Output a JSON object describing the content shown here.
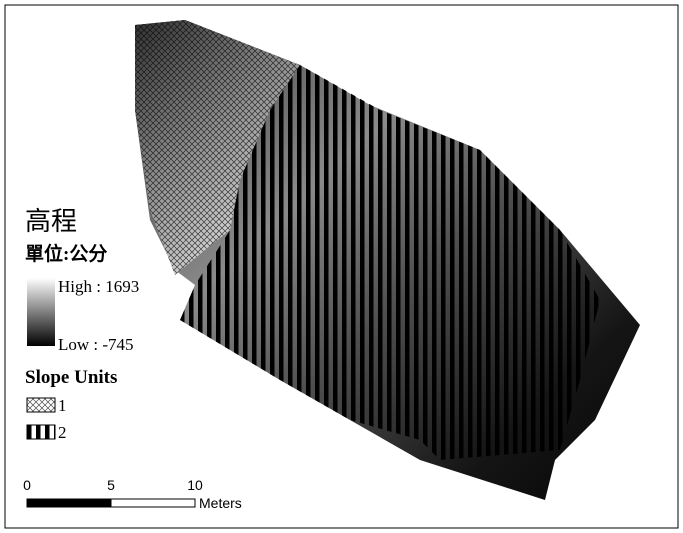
{
  "legend": {
    "title": "高程",
    "unit": "單位:公分",
    "high": "High : 1693",
    "low": "Low : -745",
    "slope_title": "Slope Units",
    "slope_items": [
      "1",
      "2"
    ]
  },
  "scale_bar": {
    "labels": [
      "0",
      "5",
      "10"
    ],
    "unit": "Meters"
  }
}
